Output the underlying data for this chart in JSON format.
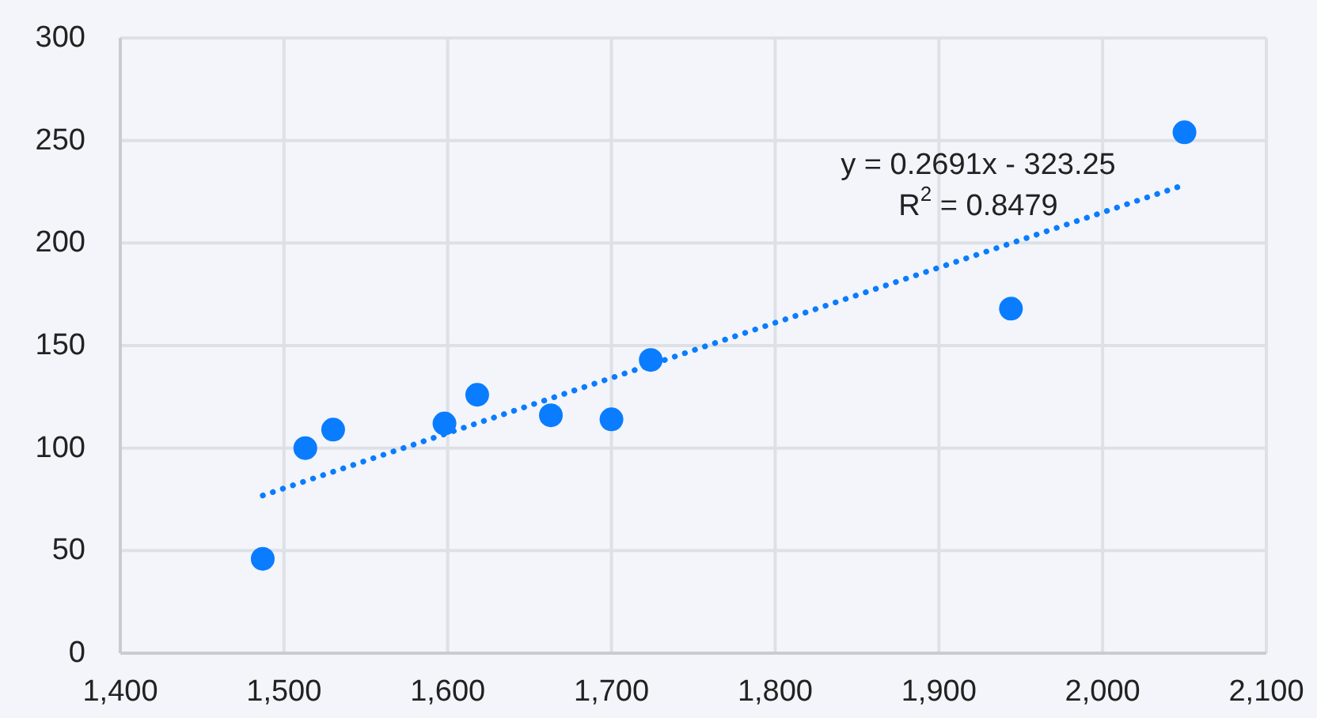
{
  "chart_data": {
    "type": "scatter",
    "x": [
      1487,
      1513,
      1530,
      1598,
      1618,
      1663,
      1700,
      1724,
      1944,
      2050
    ],
    "series": [
      {
        "color": "#0a7cff",
        "values": [
          46,
          100,
          109,
          112,
          126,
          116,
          114,
          143,
          168,
          254
        ]
      },
      {
        "type": "line",
        "color": "#0a7cff",
        "x": [
          1487,
          2050
        ],
        "values": [
          76.9,
          228.4
        ],
        "line_style": "dotted"
      }
    ],
    "xlim": [
      1400,
      2100
    ],
    "xticks": [
      {
        "value": 1400,
        "label": "1,400"
      },
      {
        "value": 1500,
        "label": "1,500"
      },
      {
        "value": 1600,
        "label": "1,600"
      },
      {
        "value": 1700,
        "label": "1,700"
      },
      {
        "value": 1800,
        "label": "1,800"
      },
      {
        "value": 1900,
        "label": "1,900"
      },
      {
        "value": 2000,
        "label": "2,000"
      },
      {
        "value": 2100,
        "label": "2,100"
      }
    ],
    "ylim": [
      0,
      300
    ],
    "yticks": [
      0,
      50,
      100,
      150,
      200,
      250,
      300
    ],
    "grid": true,
    "annotations": [
      "y = 0.2691x - 323.25",
      "R$^{2}$ = 0.8479"
    ]
  }
}
